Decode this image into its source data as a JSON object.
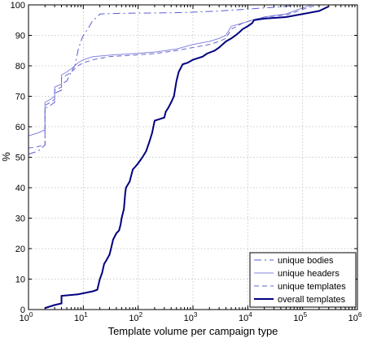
{
  "chart_data": {
    "type": "line",
    "xlabel": "Template volume per campaign type",
    "ylabel": "%",
    "xscale": "log",
    "xlim": [
      1,
      1000000
    ],
    "ylim": [
      0,
      100
    ],
    "grid": true,
    "legend_position": "bottom-right",
    "x_ticks": [
      {
        "base": "10",
        "exp": "0"
      },
      {
        "base": "10",
        "exp": "1"
      },
      {
        "base": "10",
        "exp": "2"
      },
      {
        "base": "10",
        "exp": "3"
      },
      {
        "base": "10",
        "exp": "4"
      },
      {
        "base": "10",
        "exp": "5"
      },
      {
        "base": "10",
        "exp": "6"
      }
    ],
    "y_ticks": [
      "0",
      "10",
      "20",
      "30",
      "40",
      "50",
      "60",
      "70",
      "80",
      "90",
      "100"
    ],
    "series": [
      {
        "name": "unique bodies",
        "color": "#5b5bd6",
        "dash": "9,4,2,4",
        "width": 1,
        "points": [
          [
            1,
            51
          ],
          [
            1.5,
            52
          ],
          [
            2,
            54
          ],
          [
            2,
            66
          ],
          [
            2.5,
            67
          ],
          [
            3,
            68
          ],
          [
            3,
            71
          ],
          [
            4,
            72
          ],
          [
            4,
            74
          ],
          [
            5,
            75
          ],
          [
            6,
            78
          ],
          [
            7,
            80
          ],
          [
            8,
            85
          ],
          [
            9,
            88
          ],
          [
            10,
            90
          ],
          [
            12,
            92
          ],
          [
            15,
            95
          ],
          [
            18,
            96
          ],
          [
            20,
            97
          ],
          [
            40,
            97.2
          ],
          [
            100,
            97.3
          ],
          [
            400,
            97.4
          ],
          [
            1000,
            97.6
          ],
          [
            3000,
            98
          ],
          [
            8000,
            98.5
          ],
          [
            20000,
            99
          ],
          [
            50000,
            99.5
          ],
          [
            70000,
            100
          ]
        ]
      },
      {
        "name": "unique headers",
        "color": "#8585e0",
        "dash": "",
        "width": 1,
        "points": [
          [
            1,
            57
          ],
          [
            1.5,
            58
          ],
          [
            2,
            59
          ],
          [
            2,
            68
          ],
          [
            2.5,
            69
          ],
          [
            3,
            70
          ],
          [
            3,
            73
          ],
          [
            4,
            74
          ],
          [
            4,
            77
          ],
          [
            5,
            78
          ],
          [
            6,
            79
          ],
          [
            7,
            80
          ],
          [
            8,
            81
          ],
          [
            10,
            82
          ],
          [
            15,
            83
          ],
          [
            30,
            83.5
          ],
          [
            80,
            84
          ],
          [
            200,
            84.5
          ],
          [
            500,
            85.5
          ],
          [
            1000,
            87
          ],
          [
            2000,
            88
          ],
          [
            3000,
            89
          ],
          [
            4000,
            90
          ],
          [
            5000,
            93
          ],
          [
            8000,
            94
          ],
          [
            12000,
            95
          ],
          [
            20000,
            96
          ],
          [
            30000,
            96.5
          ],
          [
            50000,
            97
          ],
          [
            70000,
            98
          ],
          [
            100000,
            99
          ],
          [
            150000,
            100
          ]
        ]
      },
      {
        "name": "unique templates",
        "color": "#6666cc",
        "dash": "6,4",
        "width": 1,
        "points": [
          [
            1,
            53
          ],
          [
            1.5,
            53.5
          ],
          [
            2,
            54
          ],
          [
            2,
            67
          ],
          [
            2.5,
            68
          ],
          [
            3,
            69
          ],
          [
            3,
            72
          ],
          [
            4,
            73
          ],
          [
            4,
            76
          ],
          [
            5,
            77
          ],
          [
            6,
            78
          ],
          [
            7,
            79
          ],
          [
            8,
            80
          ],
          [
            10,
            81
          ],
          [
            15,
            82
          ],
          [
            30,
            83
          ],
          [
            80,
            83.5
          ],
          [
            200,
            84
          ],
          [
            500,
            85
          ],
          [
            1000,
            86
          ],
          [
            2000,
            87
          ],
          [
            3000,
            88
          ],
          [
            4000,
            89
          ],
          [
            5000,
            92
          ],
          [
            8000,
            94
          ],
          [
            12000,
            95
          ],
          [
            20000,
            96
          ],
          [
            30000,
            96.3
          ],
          [
            50000,
            96.7
          ],
          [
            70000,
            97.5
          ],
          [
            100000,
            98.5
          ],
          [
            150000,
            99.5
          ],
          [
            200000,
            100
          ]
        ]
      },
      {
        "name": "overall templates",
        "color": "#000080",
        "dash": "",
        "width": 2,
        "points": [
          [
            2,
            0.5
          ],
          [
            3,
            1.5
          ],
          [
            4,
            2
          ],
          [
            4,
            4.5
          ],
          [
            8,
            5
          ],
          [
            15,
            6
          ],
          [
            18,
            6.5
          ],
          [
            20,
            10
          ],
          [
            22,
            12
          ],
          [
            24,
            15
          ],
          [
            26,
            16
          ],
          [
            30,
            18
          ],
          [
            32,
            20
          ],
          [
            35,
            23
          ],
          [
            40,
            25
          ],
          [
            45,
            26
          ],
          [
            48,
            28
          ],
          [
            50,
            30
          ],
          [
            55,
            33
          ],
          [
            58,
            38
          ],
          [
            60,
            40
          ],
          [
            70,
            42
          ],
          [
            80,
            46
          ],
          [
            90,
            47
          ],
          [
            100,
            48
          ],
          [
            120,
            50
          ],
          [
            140,
            52
          ],
          [
            160,
            55
          ],
          [
            180,
            58
          ],
          [
            200,
            62
          ],
          [
            300,
            63
          ],
          [
            320,
            65
          ],
          [
            350,
            66
          ],
          [
            400,
            68
          ],
          [
            450,
            70
          ],
          [
            500,
            75
          ],
          [
            550,
            78
          ],
          [
            650,
            80.5
          ],
          [
            800,
            81
          ],
          [
            1000,
            82
          ],
          [
            1500,
            83
          ],
          [
            1800,
            84
          ],
          [
            2500,
            85
          ],
          [
            3000,
            86
          ],
          [
            4000,
            88
          ],
          [
            5000,
            89
          ],
          [
            6000,
            90
          ],
          [
            7000,
            91
          ],
          [
            8000,
            92
          ],
          [
            10000,
            93
          ],
          [
            12000,
            94
          ],
          [
            13000,
            95
          ],
          [
            20000,
            95.5
          ],
          [
            50000,
            96
          ],
          [
            100000,
            97
          ],
          [
            200000,
            98
          ],
          [
            300000,
            99.5
          ]
        ]
      }
    ]
  }
}
